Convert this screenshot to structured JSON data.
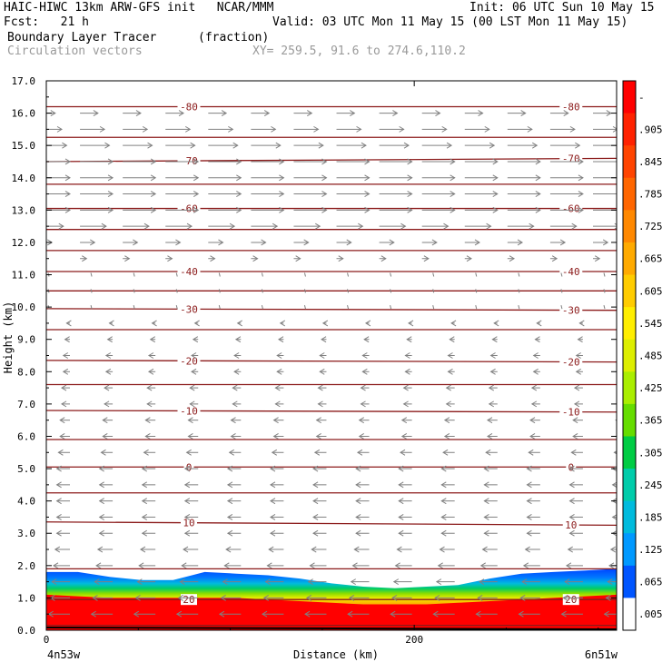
{
  "header": {
    "line1_left": "HAIC-HIWC 13km ARW-GFS init   NCAR/MMM",
    "line1_right": "Init: 06 UTC Sun 10 May 15",
    "line2_left": "Fcst:   21 h",
    "line2_right": "Valid: 03 UTC Mon 11 May 15 (00 LST Mon 11 May 15)",
    "line3_field": "Boundary Layer Tracer",
    "line3_units": "(fraction)",
    "line4_vectors": "Circulation vectors",
    "line4_xy": "XY= 259.5, 91.6 to 274.6,110.2"
  },
  "chart_data": {
    "type": "heatmap",
    "ylabel": "Height (km)",
    "xlabel": "Distance (km)",
    "xlim": [
      0,
      310
    ],
    "ylim": [
      0,
      17
    ],
    "y_ticks": [
      "0.0",
      "1.0",
      "2.0",
      "3.0",
      "4.0",
      "5.0",
      "6.0",
      "7.0",
      "8.0",
      "9.0",
      "10.0",
      "11.0",
      "12.0",
      "13.0",
      "14.0",
      "15.0",
      "16.0",
      "17.0"
    ],
    "x_ticks": [
      {
        "value": 0,
        "label": "0"
      },
      {
        "value": 200,
        "label": "200"
      }
    ],
    "x_end_labels": {
      "left": "4n53w",
      "right": "6n51w"
    },
    "colorbar_labels": [
      "-",
      ".905",
      ".845",
      ".785",
      ".725",
      ".665",
      ".605",
      ".545",
      ".485",
      ".425",
      ".365",
      ".305",
      ".245",
      ".185",
      ".125",
      ".065",
      ".005"
    ],
    "colorbar_colors": [
      "#ff0000",
      "#ff2200",
      "#ff4400",
      "#ff6600",
      "#ff8800",
      "#ffaa00",
      "#ffcc00",
      "#ffee00",
      "#ddee00",
      "#aaee00",
      "#66dd00",
      "#00cc44",
      "#00ccaa",
      "#00bbdd",
      "#0099ff",
      "#0055ff",
      "#ffffff"
    ],
    "tracer_top_km": [
      1.8,
      1.8,
      1.65,
      1.55,
      1.55,
      1.8,
      1.75,
      1.7,
      1.6,
      1.45,
      1.35,
      1.3,
      1.35,
      1.4,
      1.6,
      1.75,
      1.8,
      1.85,
      1.9
    ],
    "tracer_red_top_km": [
      1.1,
      1.05,
      1.0,
      1.0,
      1.0,
      1.0,
      1.0,
      0.95,
      0.9,
      0.85,
      0.8,
      0.8,
      0.8,
      0.85,
      0.9,
      0.95,
      1.0,
      1.05,
      1.1
    ],
    "temperature_contours": [
      {
        "label": "-80",
        "y_left": 16.2,
        "y_right": 16.2
      },
      {
        "label": "-70",
        "y_left": 14.5,
        "y_right": 14.6
      },
      {
        "label": "-60",
        "y_left": 13.05,
        "y_right": 13.05
      },
      {
        "label": "-40",
        "y_left": 11.1,
        "y_right": 11.1
      },
      {
        "label": "-30",
        "y_left": 9.95,
        "y_right": 9.9
      },
      {
        "label": "-20",
        "y_left": 8.35,
        "y_right": 8.3
      },
      {
        "label": "-10",
        "y_left": 6.8,
        "y_right": 6.75
      },
      {
        "label": "0",
        "y_left": 5.05,
        "y_right": 5.05
      },
      {
        "label": "10",
        "y_left": 3.35,
        "y_right": 3.25
      },
      {
        "label": "20",
        "y_left": 0.95,
        "y_right": 0.95
      }
    ],
    "unlabeled_contours_km": [
      15.25,
      13.8,
      12.4,
      11.75,
      10.5,
      9.3,
      7.6,
      5.9,
      4.25,
      1.9,
      0.15
    ],
    "wind_vector_rows": [
      {
        "height_km": 16.0,
        "u": 0.55
      },
      {
        "height_km": 15.5,
        "u": 0.75
      },
      {
        "height_km": 15.0,
        "u": 0.9
      },
      {
        "height_km": 14.5,
        "u": 1.0
      },
      {
        "height_km": 14.0,
        "u": 1.0
      },
      {
        "height_km": 13.5,
        "u": 1.0
      },
      {
        "height_km": 13.0,
        "u": 1.0
      },
      {
        "height_km": 12.5,
        "u": 0.8
      },
      {
        "height_km": 12.0,
        "u": 0.45
      },
      {
        "height_km": 11.5,
        "u": 0.2
      },
      {
        "height_km": 11.0,
        "u": 0.05
      },
      {
        "height_km": 10.5,
        "u": 0.0
      },
      {
        "height_km": 10.0,
        "u": -0.05
      },
      {
        "height_km": 9.5,
        "u": -0.1
      },
      {
        "height_km": 9.0,
        "u": -0.15
      },
      {
        "height_km": 8.5,
        "u": -0.2
      },
      {
        "height_km": 8.0,
        "u": -0.2
      },
      {
        "height_km": 7.5,
        "u": -0.25
      },
      {
        "height_km": 7.0,
        "u": -0.25
      },
      {
        "height_km": 6.5,
        "u": -0.3
      },
      {
        "height_km": 6.0,
        "u": -0.3
      },
      {
        "height_km": 5.5,
        "u": -0.35
      },
      {
        "height_km": 5.0,
        "u": -0.4
      },
      {
        "height_km": 4.5,
        "u": -0.4
      },
      {
        "height_km": 4.0,
        "u": -0.4
      },
      {
        "height_km": 3.5,
        "u": -0.4
      },
      {
        "height_km": 3.0,
        "u": -0.4
      },
      {
        "height_km": 2.5,
        "u": -0.45
      },
      {
        "height_km": 2.0,
        "u": -0.5
      },
      {
        "height_km": 1.5,
        "u": -0.55
      },
      {
        "height_km": 1.0,
        "u": -0.6
      },
      {
        "height_km": 0.5,
        "u": -0.65
      }
    ],
    "vector_columns": 14,
    "colors": {
      "contour": "#8b1a1a",
      "vector": "#808080",
      "frame": "#000000",
      "ground": "#000000"
    }
  }
}
